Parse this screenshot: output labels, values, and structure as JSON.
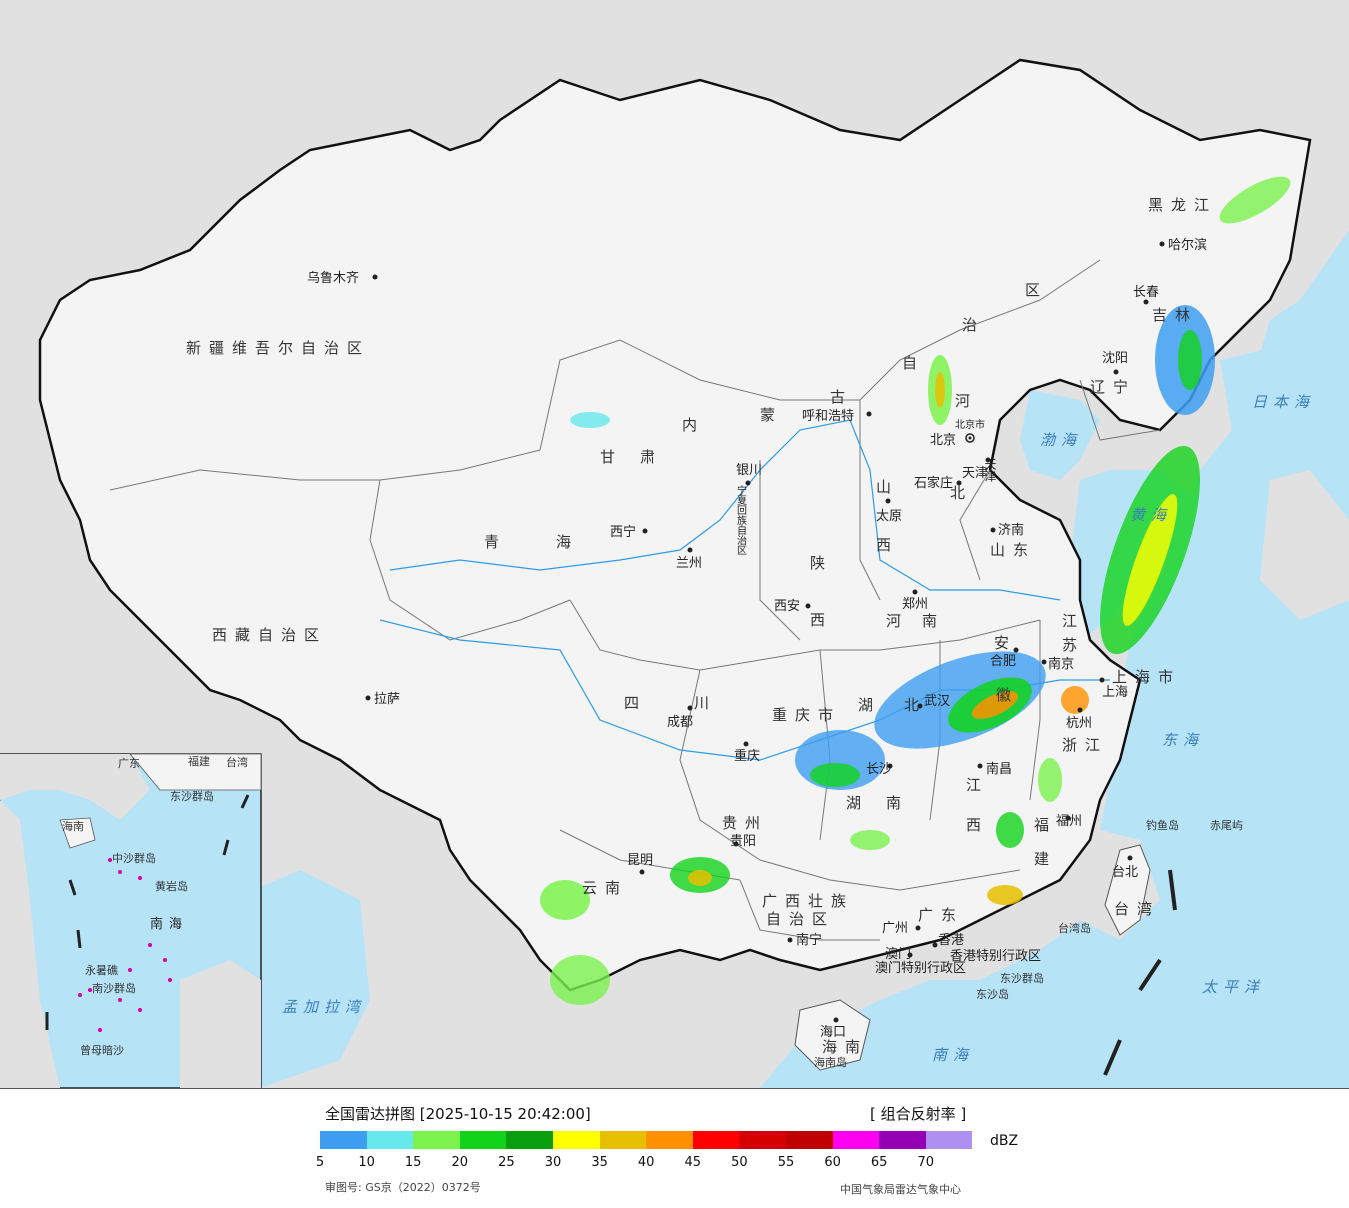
{
  "map": {
    "provinces": [
      {
        "id": "xinjiang",
        "label": "新疆维吾尔自治区"
      },
      {
        "id": "xizang",
        "label": "西藏自治区"
      },
      {
        "id": "qinghai1",
        "label": "青"
      },
      {
        "id": "qinghai2",
        "label": "海"
      },
      {
        "id": "gansu1",
        "label": "甘"
      },
      {
        "id": "gansu2",
        "label": "肃"
      },
      {
        "id": "neimeng1",
        "label": "内"
      },
      {
        "id": "neimeng2",
        "label": "蒙"
      },
      {
        "id": "neimeng3",
        "label": "古"
      },
      {
        "id": "neimeng4",
        "label": "自"
      },
      {
        "id": "neimeng5",
        "label": "治"
      },
      {
        "id": "neimeng6",
        "label": "区"
      },
      {
        "id": "heilongjiang",
        "label": "黑龙江"
      },
      {
        "id": "jilin",
        "label": "吉林"
      },
      {
        "id": "liaoning",
        "label": "辽宁"
      },
      {
        "id": "hebei1",
        "label": "河"
      },
      {
        "id": "hebei2",
        "label": "北"
      },
      {
        "id": "shanxi1",
        "label": "山"
      },
      {
        "id": "shanxi2",
        "label": "西"
      },
      {
        "id": "shandong",
        "label": "山东"
      },
      {
        "id": "shaanxi1",
        "label": "陕"
      },
      {
        "id": "shaanxi2",
        "label": "西"
      },
      {
        "id": "henan1",
        "label": "河"
      },
      {
        "id": "henan2",
        "label": "南"
      },
      {
        "id": "sichuan1",
        "label": "四"
      },
      {
        "id": "sichuan2",
        "label": "川"
      },
      {
        "id": "chongqing",
        "label": "重庆市"
      },
      {
        "id": "hubei1",
        "label": "湖"
      },
      {
        "id": "hubei2",
        "label": "北"
      },
      {
        "id": "hunan1",
        "label": "湖"
      },
      {
        "id": "hunan2",
        "label": "南"
      },
      {
        "id": "anhui1",
        "label": "安"
      },
      {
        "id": "anhui2",
        "label": "徽"
      },
      {
        "id": "jiangsu1",
        "label": "江"
      },
      {
        "id": "jiangsu2",
        "label": "苏"
      },
      {
        "id": "shanghai",
        "label": "上海市"
      },
      {
        "id": "zhejiang",
        "label": "浙江"
      },
      {
        "id": "jiangxi1",
        "label": "江"
      },
      {
        "id": "jiangxi2",
        "label": "西"
      },
      {
        "id": "fujian1",
        "label": "福"
      },
      {
        "id": "fujian2",
        "label": "建"
      },
      {
        "id": "guizhou",
        "label": "贵州"
      },
      {
        "id": "yunnan",
        "label": "云南"
      },
      {
        "id": "guangxi1",
        "label": "广西壮族"
      },
      {
        "id": "guangxi2",
        "label": "自治区"
      },
      {
        "id": "guangdong",
        "label": "广东"
      },
      {
        "id": "hainan",
        "label": "海南"
      },
      {
        "id": "taiwan",
        "label": "台湾"
      },
      {
        "id": "ningxia",
        "label": "宁夏回族自治区"
      },
      {
        "id": "tianjin",
        "label": "天津"
      },
      {
        "id": "beijingshi",
        "label": "北京市"
      },
      {
        "id": "hk",
        "label": "香港特别行政区"
      },
      {
        "id": "macau",
        "label": "澳门特别行政区"
      }
    ],
    "cities": [
      {
        "id": "wulumuqi",
        "label": "乌鲁木齐"
      },
      {
        "id": "lasa",
        "label": "拉萨"
      },
      {
        "id": "xining",
        "label": "西宁"
      },
      {
        "id": "lanzhou",
        "label": "兰州"
      },
      {
        "id": "yinchuan",
        "label": "银川"
      },
      {
        "id": "huhehaote",
        "label": "呼和浩特"
      },
      {
        "id": "haerbin",
        "label": "哈尔滨"
      },
      {
        "id": "changchun",
        "label": "长春"
      },
      {
        "id": "shenyang",
        "label": "沈阳"
      },
      {
        "id": "beijing",
        "label": "北京"
      },
      {
        "id": "tianjincity",
        "label": "天津"
      },
      {
        "id": "shijiazhuang",
        "label": "石家庄"
      },
      {
        "id": "taiyuan",
        "label": "太原"
      },
      {
        "id": "jinan",
        "label": "济南"
      },
      {
        "id": "zhengzhou",
        "label": "郑州"
      },
      {
        "id": "xian",
        "label": "西安"
      },
      {
        "id": "chengdu",
        "label": "成都"
      },
      {
        "id": "chongqingcity",
        "label": "重庆"
      },
      {
        "id": "wuhan",
        "label": "武汉"
      },
      {
        "id": "hefei",
        "label": "合肥"
      },
      {
        "id": "nanjing",
        "label": "南京"
      },
      {
        "id": "shanghaicity",
        "label": "上海"
      },
      {
        "id": "hangzhou",
        "label": "杭州"
      },
      {
        "id": "changsha",
        "label": "长沙"
      },
      {
        "id": "nanchang",
        "label": "南昌"
      },
      {
        "id": "fuzhou",
        "label": "福州"
      },
      {
        "id": "guiyang",
        "label": "贵阳"
      },
      {
        "id": "kunming",
        "label": "昆明"
      },
      {
        "id": "nanning",
        "label": "南宁"
      },
      {
        "id": "guangzhou",
        "label": "广州"
      },
      {
        "id": "aomen",
        "label": "澳门"
      },
      {
        "id": "xianggang",
        "label": "香港"
      },
      {
        "id": "haikou",
        "label": "海口"
      },
      {
        "id": "taibei",
        "label": "台北"
      }
    ],
    "seas": [
      {
        "id": "riben",
        "label": "日本海"
      },
      {
        "id": "donghai",
        "label": "东海"
      },
      {
        "id": "taipingyang",
        "label": "太平洋"
      },
      {
        "id": "nanhai",
        "label": "南海"
      },
      {
        "id": "mengjiala",
        "label": "孟加拉湾"
      },
      {
        "id": "bohai",
        "label": "渤海"
      },
      {
        "id": "huanghai",
        "label": "黄海"
      }
    ],
    "islands": [
      {
        "id": "diaoyu",
        "label": "钓鱼岛"
      },
      {
        "id": "chiwei",
        "label": "赤尾屿"
      },
      {
        "id": "taiwandao",
        "label": "台湾岛"
      },
      {
        "id": "dongsha",
        "label": "东沙群岛"
      },
      {
        "id": "dongshadao",
        "label": "东沙岛"
      },
      {
        "id": "hainandao",
        "label": "海南岛"
      }
    ],
    "inset": {
      "sea": "南海",
      "labels": [
        "广东",
        "福建",
        "台湾",
        "海南",
        "东沙群岛",
        "中沙群岛",
        "黄岩岛",
        "南沙群岛",
        "曾母暗沙",
        "永暑礁"
      ]
    }
  },
  "legend": {
    "title": "全国雷达拼图 [2025-10-15 20:42:00]",
    "product": "[ 组合反射率 ]",
    "unit": "dBZ",
    "colors": [
      "#3d9ef1",
      "#66e9ec",
      "#7cf24c",
      "#11d31a",
      "#0a9f0e",
      "#ffff00",
      "#e6c000",
      "#ff9000",
      "#ff0000",
      "#d60000",
      "#c00000",
      "#ff00f0",
      "#9600b4",
      "#ad90f0"
    ],
    "ticks": [
      "5",
      "10",
      "15",
      "20",
      "25",
      "30",
      "35",
      "40",
      "45",
      "50",
      "55",
      "60",
      "65",
      "70"
    ],
    "approval": "审图号: GS京（2022）0372号",
    "credit": "中国气象局雷达气象中心"
  }
}
